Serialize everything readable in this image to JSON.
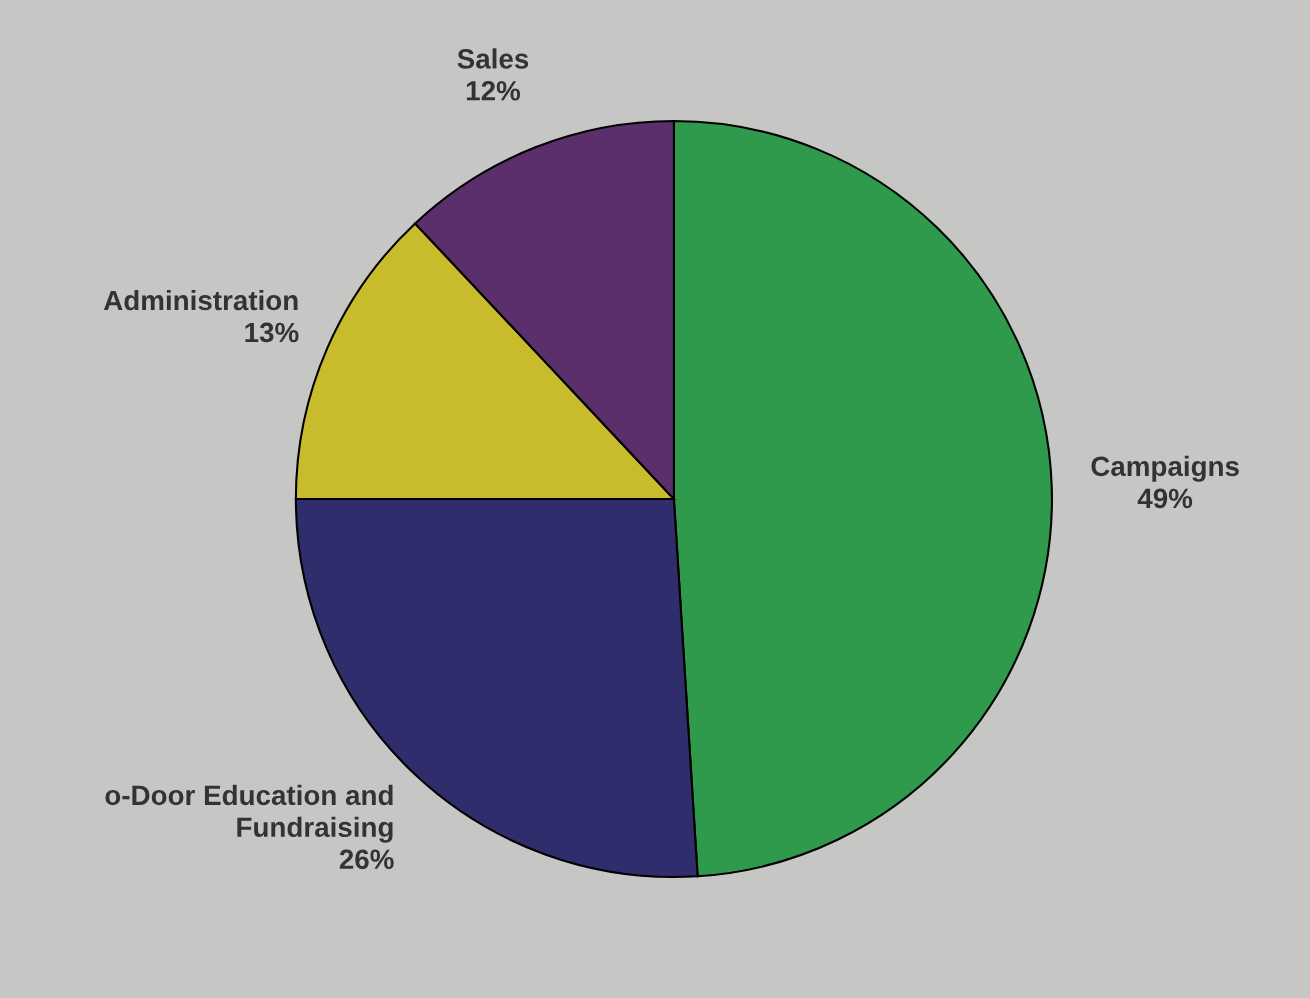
{
  "chart_data": {
    "type": "pie",
    "categories": [
      "Campaigns",
      "o-Door Education and\nFundraising",
      "Administration",
      "Sales"
    ],
    "values": [
      49,
      26,
      13,
      12
    ],
    "value_labels": [
      "49%",
      "26%",
      "13%",
      "12%"
    ],
    "colors": [
      "#2f9a4b",
      "#2f2d6b",
      "#c9bc2c",
      "#5b2f6b"
    ]
  }
}
